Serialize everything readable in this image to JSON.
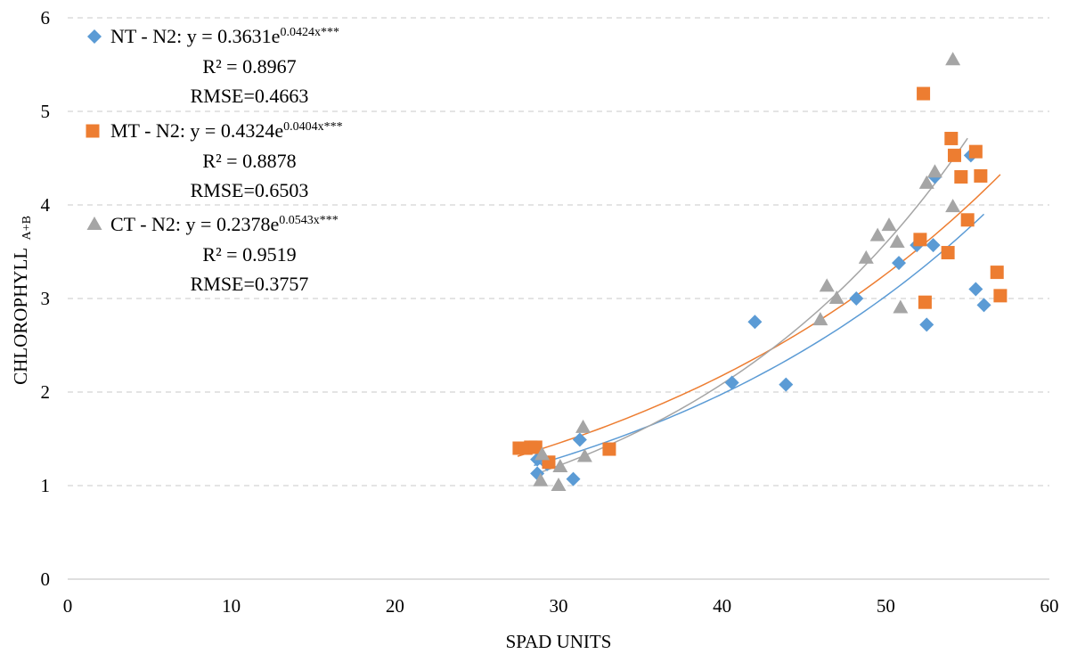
{
  "chart_data": {
    "type": "scatter",
    "title": "",
    "xlabel": "SPAD UNITS",
    "ylabel": "CHLOROPHYLL",
    "ylabel_subscript": "A+B",
    "xlim": [
      0,
      60
    ],
    "ylim": [
      0,
      6
    ],
    "xticks": [
      "0",
      "10",
      "20",
      "30",
      "40",
      "50",
      "60"
    ],
    "yticks": [
      "0",
      "1",
      "2",
      "3",
      "4",
      "5",
      "6"
    ],
    "grid": "horizontal dashed",
    "legend_placement": "top-left",
    "series": [
      {
        "name": "NT - N2",
        "marker": "diamond",
        "color": "#5B9BD5",
        "equation_prefix": "NT - N2: y = 0.3631e",
        "equation_exponent": "0.0424x***",
        "r2": "R² = 0.8967",
        "rmse": "RMSE=0.4663",
        "trend_a": 0.3631,
        "trend_b": 0.0424,
        "trend_range": [
          28.5,
          56
        ],
        "points": [
          [
            28.7,
            1.28
          ],
          [
            28.7,
            1.13
          ],
          [
            29.3,
            1.23
          ],
          [
            30.9,
            1.07
          ],
          [
            31.3,
            1.49
          ],
          [
            40.6,
            2.1
          ],
          [
            42.0,
            2.75
          ],
          [
            43.9,
            2.08
          ],
          [
            48.2,
            3.0
          ],
          [
            50.8,
            3.38
          ],
          [
            51.9,
            3.57
          ],
          [
            52.5,
            2.72
          ],
          [
            52.9,
            3.57
          ],
          [
            53.0,
            4.3
          ],
          [
            55.2,
            4.53
          ],
          [
            55.5,
            3.1
          ],
          [
            56.0,
            2.93
          ]
        ]
      },
      {
        "name": "MT - N2",
        "marker": "square",
        "color": "#ED7D31",
        "equation_prefix": "MT - N2: y = 0.4324e",
        "equation_exponent": "0.0404x***",
        "r2": "R² = 0.8878",
        "rmse": "RMSE=0.6503",
        "trend_a": 0.4324,
        "trend_b": 0.0404,
        "trend_range": [
          27.5,
          57
        ],
        "points": [
          [
            27.6,
            1.4
          ],
          [
            28.0,
            1.4
          ],
          [
            28.3,
            1.41
          ],
          [
            28.6,
            1.41
          ],
          [
            29.4,
            1.25
          ],
          [
            33.1,
            1.39
          ],
          [
            52.1,
            3.63
          ],
          [
            52.3,
            5.19
          ],
          [
            52.4,
            2.96
          ],
          [
            53.8,
            3.49
          ],
          [
            54.0,
            4.71
          ],
          [
            54.2,
            4.53
          ],
          [
            54.6,
            4.3
          ],
          [
            55.0,
            3.84
          ],
          [
            55.5,
            4.57
          ],
          [
            55.8,
            4.31
          ],
          [
            56.8,
            3.28
          ],
          [
            57.0,
            3.03
          ]
        ]
      },
      {
        "name": "CT - N2",
        "marker": "triangle",
        "color": "#A5A5A5",
        "equation_prefix": "CT - N2: y = 0.2378e",
        "equation_exponent": "0.0543x***",
        "r2": "R² = 0.9519",
        "rmse": "RMSE=0.3757",
        "trend_a": 0.2378,
        "trend_b": 0.0543,
        "trend_range": [
          29,
          55
        ],
        "points": [
          [
            28.9,
            1.05
          ],
          [
            29.0,
            1.33
          ],
          [
            30.0,
            1.0
          ],
          [
            30.1,
            1.2
          ],
          [
            31.5,
            1.62
          ],
          [
            31.6,
            1.31
          ],
          [
            46.0,
            2.77
          ],
          [
            46.4,
            3.13
          ],
          [
            47.0,
            3.0
          ],
          [
            48.8,
            3.43
          ],
          [
            49.5,
            3.67
          ],
          [
            50.2,
            3.78
          ],
          [
            50.7,
            3.6
          ],
          [
            50.9,
            2.9
          ],
          [
            52.5,
            4.23
          ],
          [
            53.0,
            4.35
          ],
          [
            54.1,
            3.98
          ],
          [
            54.1,
            5.55
          ]
        ]
      }
    ]
  }
}
